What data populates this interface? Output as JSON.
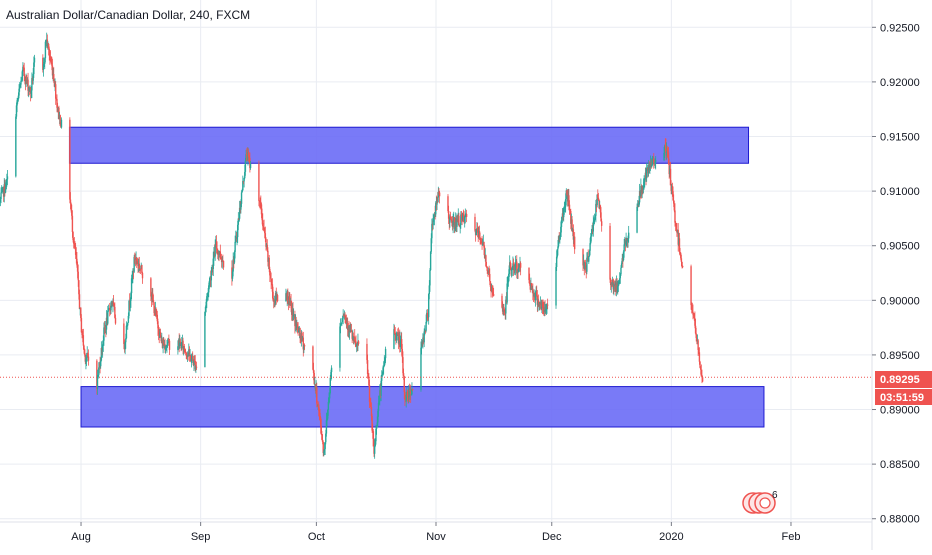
{
  "header": {
    "title": "Australian Dollar/Canadian Dollar, 240, FXCM"
  },
  "price_badge": {
    "value": "0.89295",
    "countdown": "03:51:59"
  },
  "events_badge": {
    "count": "6"
  },
  "colors": {
    "up": "#26a69a",
    "down": "#ef5350",
    "zone_fill": "#6a6cf6",
    "zone_stroke": "#1e1ad0",
    "price_line": "#ef5350",
    "grid": "#e9ecf2",
    "axis": "#787b86"
  },
  "chart_data": {
    "type": "candlestick",
    "symbol": "AUDCAD",
    "timeframe": "240",
    "source": "FXCM",
    "y_ticks": [
      "0.92500",
      "0.92000",
      "0.91500",
      "0.91000",
      "0.90500",
      "0.90000",
      "0.89500",
      "0.89000",
      "0.88500",
      "0.88000"
    ],
    "x_ticks": [
      "Aug",
      "Sep",
      "Oct",
      "Nov",
      "Dec",
      "2020",
      "Feb"
    ],
    "ylim": [
      0.8797,
      0.9275
    ],
    "xlim": [
      "2019-07-11",
      "2020-02-22"
    ],
    "grid": true,
    "last_price": 0.89295,
    "price_path": [
      [
        "2019-07-11",
        0.909
      ],
      [
        "2019-07-13",
        0.911
      ],
      [
        "2019-07-15",
        0.917
      ],
      [
        "2019-07-17",
        0.921
      ],
      [
        "2019-07-19",
        0.919
      ],
      [
        "2019-07-21",
        0.9245
      ],
      [
        "2019-07-22",
        0.92
      ],
      [
        "2019-07-23",
        0.924
      ],
      [
        "2019-07-25",
        0.9205
      ],
      [
        "2019-07-26",
        0.9175
      ],
      [
        "2019-07-28",
        0.9145
      ],
      [
        "2019-07-30",
        0.906
      ],
      [
        "2019-07-31",
        0.903
      ],
      [
        "2019-08-01",
        0.898
      ],
      [
        "2019-08-02",
        0.895
      ],
      [
        "2019-08-04",
        0.894
      ],
      [
        "2019-08-05",
        0.892
      ],
      [
        "2019-08-07",
        0.897
      ],
      [
        "2019-08-09",
        0.9
      ],
      [
        "2019-08-12",
        0.895
      ],
      [
        "2019-08-15",
        0.904
      ],
      [
        "2019-08-19",
        0.901
      ],
      [
        "2019-08-22",
        0.896
      ],
      [
        "2019-08-27",
        0.896
      ],
      [
        "2019-08-31",
        0.894
      ],
      [
        "2019-09-03",
        0.901
      ],
      [
        "2019-09-05",
        0.905
      ],
      [
        "2019-09-09",
        0.902
      ],
      [
        "2019-09-13",
        0.9135
      ],
      [
        "2019-09-15",
        0.911
      ],
      [
        "2019-09-16",
        0.91
      ],
      [
        "2019-09-20",
        0.9
      ],
      [
        "2019-09-23",
        0.901
      ],
      [
        "2019-09-26",
        0.8975
      ],
      [
        "2019-09-30",
        0.894
      ],
      [
        "2019-10-02",
        0.889
      ],
      [
        "2019-10-03",
        0.886
      ],
      [
        "2019-10-05",
        0.894
      ],
      [
        "2019-10-08",
        0.899
      ],
      [
        "2019-10-11",
        0.896
      ],
      [
        "2019-10-14",
        0.895
      ],
      [
        "2019-10-16",
        0.886
      ],
      [
        "2019-10-17",
        0.89
      ],
      [
        "2019-10-20",
        0.898
      ],
      [
        "2019-10-23",
        0.896
      ],
      [
        "2019-10-24",
        0.891
      ],
      [
        "2019-10-26",
        0.892
      ],
      [
        "2019-10-28",
        0.895
      ],
      [
        "2019-10-30",
        0.899
      ],
      [
        "2019-10-31",
        0.907
      ],
      [
        "2019-11-02",
        0.91
      ],
      [
        "2019-11-05",
        0.907
      ],
      [
        "2019-11-09",
        0.9075
      ],
      [
        "2019-11-13",
        0.9055
      ],
      [
        "2019-11-16",
        0.9
      ],
      [
        "2019-11-19",
        0.899
      ],
      [
        "2019-11-20",
        0.903
      ],
      [
        "2019-11-24",
        0.903
      ],
      [
        "2019-11-26",
        0.901
      ],
      [
        "2019-11-29",
        0.899
      ],
      [
        "2019-12-01",
        0.9
      ],
      [
        "2019-12-03",
        0.906
      ],
      [
        "2019-12-05",
        0.91
      ],
      [
        "2019-12-07",
        0.905
      ],
      [
        "2019-12-10",
        0.903
      ],
      [
        "2019-12-13",
        0.9095
      ],
      [
        "2019-12-16",
        0.902
      ],
      [
        "2019-12-18",
        0.901
      ],
      [
        "2019-12-20",
        0.905
      ],
      [
        "2019-12-23",
        0.9085
      ],
      [
        "2019-12-25",
        0.911
      ],
      [
        "2019-12-27",
        0.9125
      ],
      [
        "2019-12-29",
        0.914
      ],
      [
        "2019-12-31",
        0.9135
      ],
      [
        "2020-01-02",
        0.9075
      ],
      [
        "2020-01-04",
        0.903
      ],
      [
        "2020-01-06",
        0.9
      ],
      [
        "2020-01-07",
        0.898
      ],
      [
        "2020-01-09",
        0.8929
      ]
    ],
    "annotations": [
      {
        "type": "rectangle",
        "x": [
          "2019-07-29",
          "2020-01-21"
        ],
        "y": [
          0.91255,
          0.91585
        ]
      },
      {
        "type": "rectangle",
        "x": [
          "2019-08-01",
          "2020-01-25"
        ],
        "y": [
          0.8884,
          0.8921
        ]
      }
    ]
  }
}
